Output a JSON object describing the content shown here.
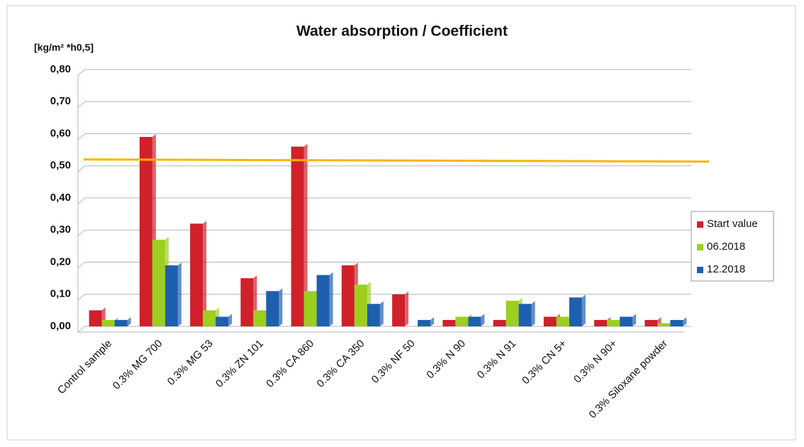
{
  "chart_data": {
    "type": "bar",
    "title": "Water absorption / Coefficient",
    "y_label": "[kg/m² *h0,5]",
    "categories": [
      "Control sample",
      "0.3% MG 700",
      "0.3% MG 53",
      "0.3% ZN 101",
      "0.3% CA 860",
      "0.3% CA 350",
      "0.3% NF 50",
      "0.3% N 90",
      "0.3% N 91",
      "0.3% CN 5+",
      "0.3% N 90+",
      "0.3% Siloxane powder"
    ],
    "series": [
      {
        "name": "Start value",
        "color": "#d0202a",
        "values": [
          0.05,
          0.59,
          0.32,
          0.15,
          0.56,
          0.19,
          0.1,
          0.02,
          0.02,
          0.03,
          0.02,
          0.02
        ]
      },
      {
        "name": "06.2018",
        "color": "#9ccf1e",
        "values": [
          0.02,
          0.27,
          0.05,
          0.05,
          0.11,
          0.13,
          null,
          0.03,
          0.08,
          0.03,
          0.02,
          0.01
        ]
      },
      {
        "name": "12.2018",
        "color": "#1f5fb0",
        "values": [
          0.02,
          0.19,
          0.03,
          0.11,
          0.16,
          0.07,
          0.02,
          0.03,
          0.07,
          0.09,
          0.03,
          0.02
        ]
      }
    ],
    "reference_line": {
      "value": 0.52,
      "color": "#ffb400"
    },
    "ylim": [
      0,
      0.8
    ],
    "yticks": [
      {
        "value": 0,
        "label": "0,00"
      },
      {
        "value": 0.1,
        "label": "0,10"
      },
      {
        "value": 0.2,
        "label": "0,20"
      },
      {
        "value": 0.3,
        "label": "0,30"
      },
      {
        "value": 0.4,
        "label": "0,40"
      },
      {
        "value": 0.5,
        "label": "0,50"
      },
      {
        "value": 0.6,
        "label": "0,60"
      },
      {
        "value": 0.7,
        "label": "0,70"
      },
      {
        "value": 0.8,
        "label": "0,80"
      }
    ],
    "grid": true,
    "legend": "right"
  }
}
